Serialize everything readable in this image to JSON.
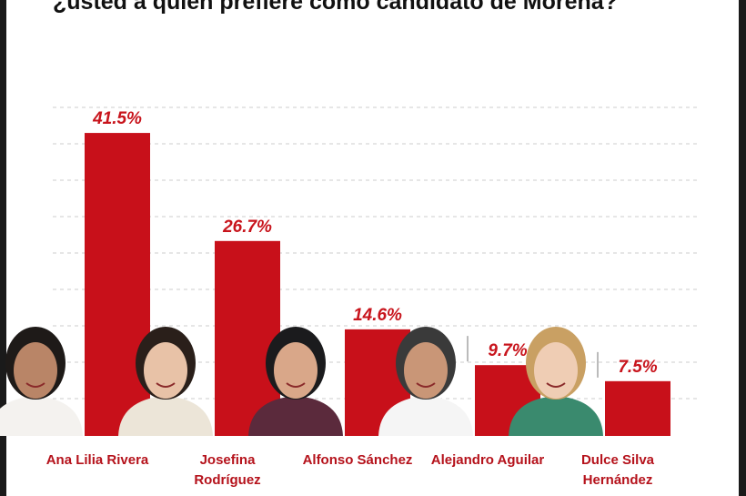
{
  "title": "¿usted a quién prefiere como candidato de Morena?",
  "colors": {
    "bar": "#c8101a",
    "value_label": "#c8141c",
    "category_label": "#b5121b",
    "grid": "#cccccc"
  },
  "chart_data": {
    "type": "bar",
    "title": "¿usted a quién prefiere como candidato de Morena?",
    "xlabel": "",
    "ylabel": "",
    "grid": true,
    "categories": [
      [
        "Ana Lilia Rivera"
      ],
      [
        "Josefina",
        "Rodríguez"
      ],
      [
        "Alfonso Sánchez"
      ],
      [
        "Alejandro Aguilar"
      ],
      [
        "Dulce Silva",
        "Hernández"
      ]
    ],
    "values": [
      41.5,
      26.7,
      14.6,
      9.7,
      7.5
    ],
    "value_labels": [
      "41.5%",
      "26.7%",
      "14.6%",
      "9.7%",
      "7.5%"
    ],
    "ylim": [
      0,
      45
    ]
  }
}
